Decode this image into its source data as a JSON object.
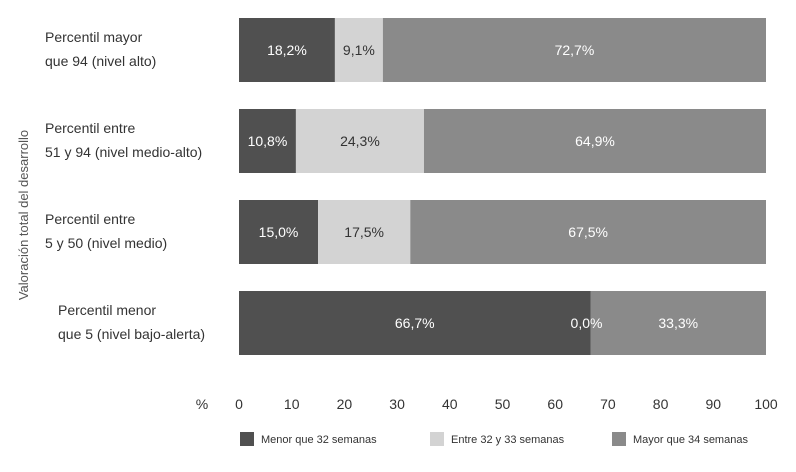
{
  "chart_data": {
    "type": "bar",
    "orientation": "horizontal",
    "stacked": true,
    "title": "",
    "ylabel": "Valoración total del desarrollo",
    "xlabel": "",
    "x_unit_label": "%",
    "xlim": [
      0,
      100
    ],
    "x_ticks": [
      "0",
      "10",
      "20",
      "30",
      "40",
      "50",
      "60",
      "70",
      "80",
      "90",
      "100"
    ],
    "categories": [
      [
        "Percentil mayor",
        "que 94 (nivel alto)"
      ],
      [
        "Percentil entre",
        "51 y 94 (nivel medio-alto)"
      ],
      [
        "Percentil entre",
        "5 y 50 (nivel medio)"
      ],
      [
        "Percentil menor",
        "que 5 (nivel bajo-alerta)"
      ]
    ],
    "series": [
      {
        "name": "Menor que 32 semanas",
        "color": "#505050",
        "text_color": "#ffffff",
        "values": [
          18.2,
          10.8,
          15.0,
          66.7
        ],
        "labels": [
          "18,2%",
          "10,8%",
          "15,0%",
          "66,7%"
        ]
      },
      {
        "name": "Entre 32  y 33 semanas",
        "color": "#d3d3d3",
        "text_color": "#333333",
        "values": [
          9.1,
          24.3,
          17.5,
          0.0
        ],
        "labels": [
          "9,1%",
          "24,3%",
          "17,5%",
          "0,0%"
        ]
      },
      {
        "name": "Mayor que 34 semanas",
        "color": "#8a8a8a",
        "text_color": "#ffffff",
        "values": [
          72.7,
          64.9,
          67.5,
          33.3
        ],
        "labels": [
          "72,7%",
          "64,9%",
          "67,5%",
          "33,3%"
        ]
      }
    ],
    "grid": false,
    "legend_position": "bottom"
  }
}
